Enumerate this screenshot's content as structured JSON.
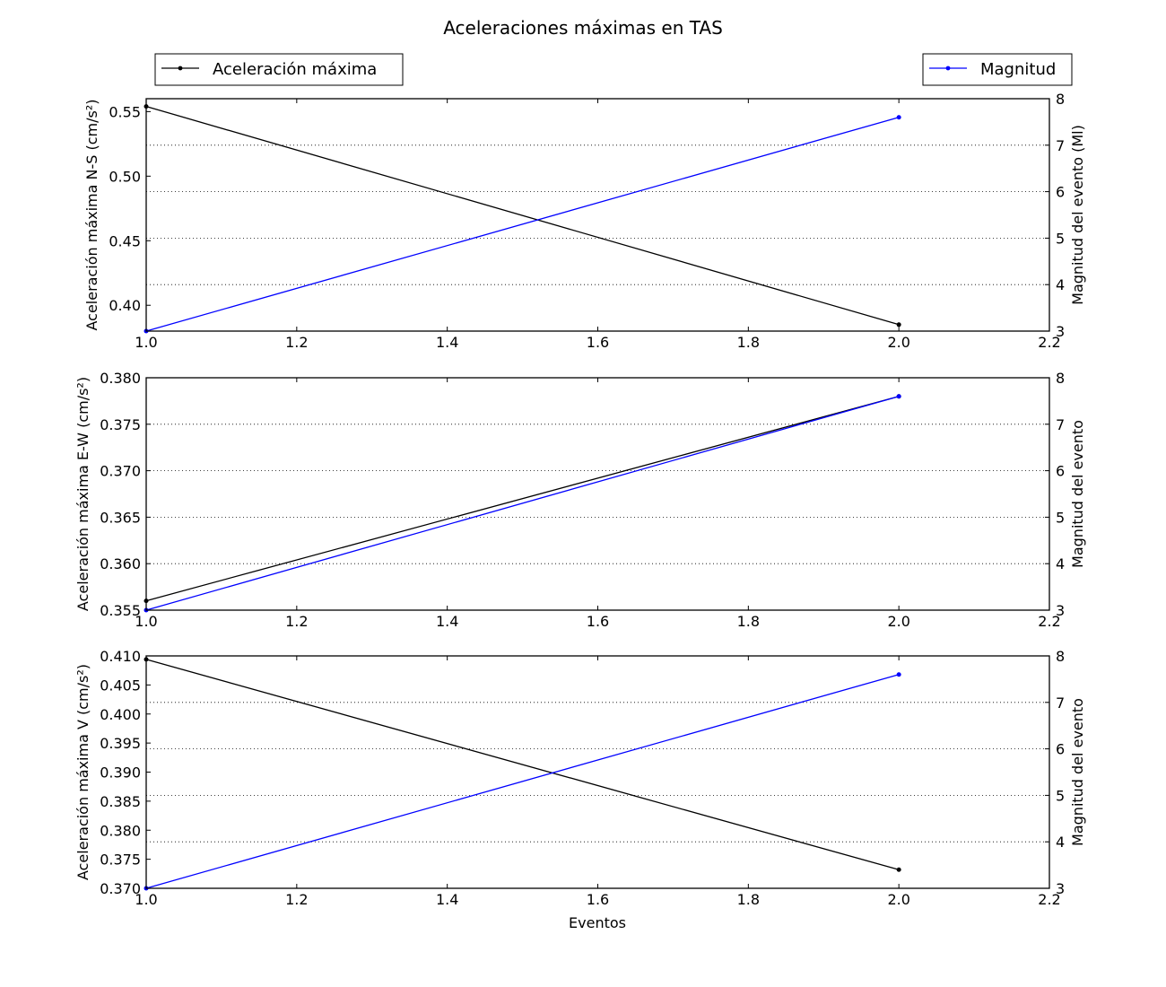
{
  "figure": {
    "title": "Aceleraciones máximas en TAS",
    "xlabel": "Eventos"
  },
  "legend": {
    "left": {
      "label": "Aceleración máxima",
      "color": "#000000",
      "placement": "top-left"
    },
    "right": {
      "label": "Magnitud",
      "color": "#0000ff",
      "placement": "top-right"
    }
  },
  "chart_data": [
    {
      "type": "line",
      "xlim": [
        1.0,
        2.2
      ],
      "xticks": [
        "1.0",
        "1.2",
        "1.4",
        "1.6",
        "1.8",
        "2.0",
        "2.2"
      ],
      "ylabel_left": "Aceleración máxima N-S (cm/s²)",
      "ylim_left": [
        0.38,
        0.56
      ],
      "yticks_left": [
        "0.40",
        "0.45",
        "0.50",
        "0.55"
      ],
      "ylabel_right": "Magnitud del evento (Ml)",
      "ylim_right": [
        3,
        8
      ],
      "yticks_right": [
        "3",
        "4",
        "5",
        "6",
        "7",
        "8"
      ],
      "grid": "right-axis horizontal dotted",
      "series": [
        {
          "name": "Aceleración máxima",
          "axis": "left",
          "color": "#000000",
          "x": [
            1.0,
            2.0
          ],
          "y": [
            0.554,
            0.385
          ]
        },
        {
          "name": "Magnitud",
          "axis": "right",
          "color": "#0000ff",
          "x": [
            1.0,
            2.0
          ],
          "y": [
            3.0,
            7.6
          ]
        }
      ]
    },
    {
      "type": "line",
      "xlim": [
        1.0,
        2.2
      ],
      "xticks": [
        "1.0",
        "1.2",
        "1.4",
        "1.6",
        "1.8",
        "2.0",
        "2.2"
      ],
      "ylabel_left": "Aceleración máxima E-W (cm/s²)",
      "ylim_left": [
        0.355,
        0.38
      ],
      "yticks_left": [
        "0.355",
        "0.360",
        "0.365",
        "0.370",
        "0.375",
        "0.380"
      ],
      "ylabel_right": "Magnitud del evento",
      "ylim_right": [
        3,
        8
      ],
      "yticks_right": [
        "3",
        "4",
        "5",
        "6",
        "7",
        "8"
      ],
      "grid": "right-axis horizontal dotted",
      "series": [
        {
          "name": "Aceleración máxima",
          "axis": "left",
          "color": "#000000",
          "x": [
            1.0,
            2.0
          ],
          "y": [
            0.356,
            0.378
          ]
        },
        {
          "name": "Magnitud",
          "axis": "right",
          "color": "#0000ff",
          "x": [
            1.0,
            2.0
          ],
          "y": [
            3.0,
            7.6
          ]
        }
      ]
    },
    {
      "type": "line",
      "xlim": [
        1.0,
        2.2
      ],
      "xticks": [
        "1.0",
        "1.2",
        "1.4",
        "1.6",
        "1.8",
        "2.0",
        "2.2"
      ],
      "ylabel_left": "Aceleración máxima V (cm/s²)",
      "ylim_left": [
        0.37,
        0.41
      ],
      "yticks_left": [
        "0.370",
        "0.375",
        "0.380",
        "0.385",
        "0.390",
        "0.395",
        "0.400",
        "0.405",
        "0.410"
      ],
      "ylabel_right": "Magnitud del evento",
      "ylim_right": [
        3,
        8
      ],
      "yticks_right": [
        "3",
        "4",
        "5",
        "6",
        "7",
        "8"
      ],
      "grid": "right-axis horizontal dotted",
      "series": [
        {
          "name": "Aceleración máxima",
          "axis": "left",
          "color": "#000000",
          "x": [
            1.0,
            2.0
          ],
          "y": [
            0.4094,
            0.3732
          ]
        },
        {
          "name": "Magnitud",
          "axis": "right",
          "color": "#0000ff",
          "x": [
            1.0,
            2.0
          ],
          "y": [
            3.0,
            7.6
          ]
        }
      ]
    }
  ]
}
